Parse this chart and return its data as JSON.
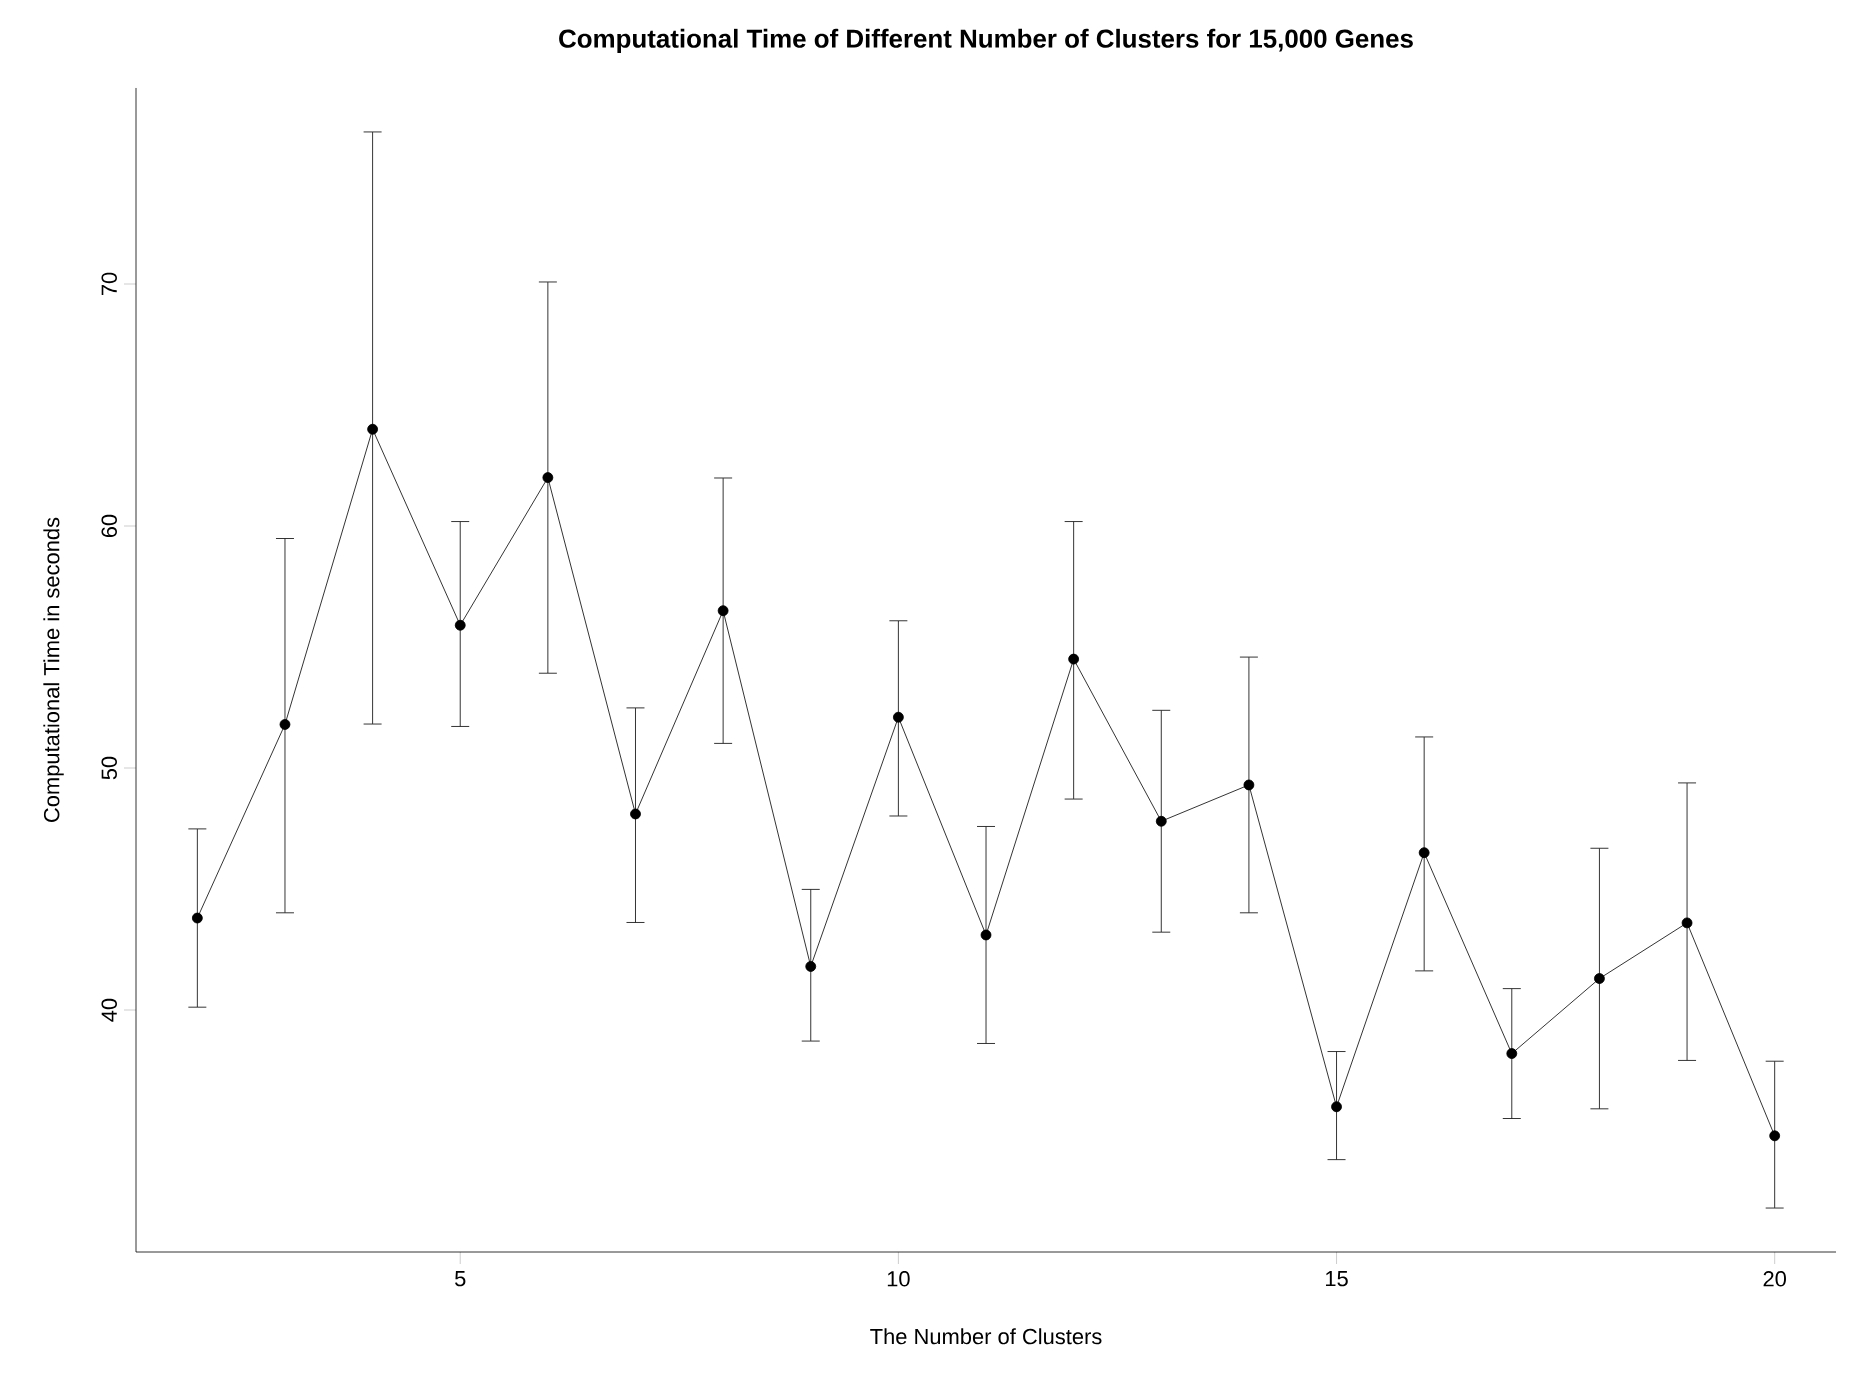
{
  "chart_data": {
    "type": "line",
    "title": "Computational Time of Different Number of Clusters for 15,000 Genes",
    "xlabel": "The Number of Clusters",
    "ylabel": "Computational Time in seconds",
    "x": [
      2,
      3,
      4,
      5,
      6,
      7,
      8,
      9,
      10,
      11,
      12,
      13,
      14,
      15,
      16,
      17,
      18,
      19,
      20
    ],
    "series": [
      {
        "color": "#000000",
        "values": [
          43.8,
          51.8,
          64.0,
          55.9,
          62.0,
          48.1,
          56.5,
          41.8,
          52.1,
          43.1,
          54.5,
          47.8,
          49.3,
          36.0,
          46.5,
          38.2,
          41.3,
          43.6,
          34.8
        ],
        "errors": [
          [
            40.1,
            47.5
          ],
          [
            44.0,
            59.5
          ],
          [
            51.8,
            76.3
          ],
          [
            51.7,
            60.2
          ],
          [
            53.9,
            70.1
          ],
          [
            43.6,
            52.5
          ],
          [
            51.0,
            62.0
          ],
          [
            38.7,
            45.0
          ],
          [
            48.0,
            56.1
          ],
          [
            38.6,
            47.6
          ],
          [
            48.7,
            60.2
          ],
          [
            43.2,
            52.4
          ],
          [
            44.0,
            54.6
          ],
          [
            33.8,
            38.3
          ],
          [
            41.6,
            51.3
          ],
          [
            35.5,
            40.9
          ],
          [
            35.9,
            46.7
          ],
          [
            37.9,
            49.4
          ],
          [
            31.8,
            37.9
          ]
        ]
      }
    ],
    "xlim": [
      1.3,
      20.7
    ],
    "ylim": [
      30,
      78.1
    ],
    "xticks": [
      5,
      10,
      15,
      20
    ],
    "yticks": [
      40,
      50,
      60,
      70
    ],
    "grid": false,
    "marker": "circle",
    "line_style": "solid"
  }
}
